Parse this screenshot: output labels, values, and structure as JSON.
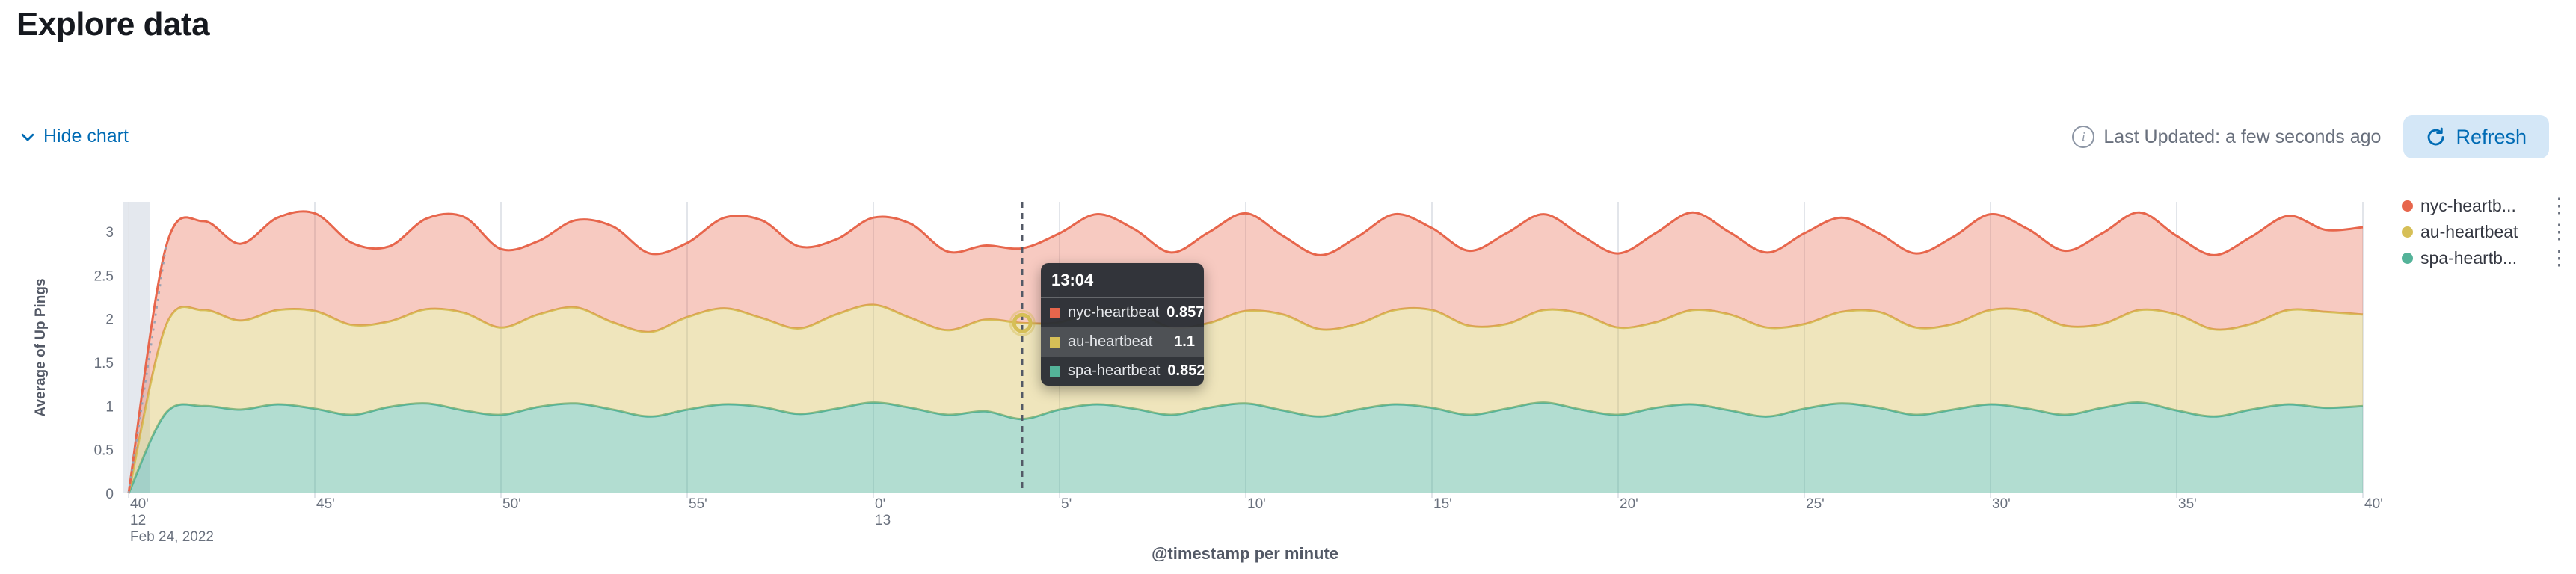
{
  "page": {
    "title": "Explore data"
  },
  "controls": {
    "hide_chart_label": "Hide chart",
    "last_updated": "Last Updated: a few seconds ago",
    "refresh_label": "Refresh"
  },
  "legend": {
    "items": [
      {
        "label": "nyc-heartb...",
        "color": "#E7664C"
      },
      {
        "label": "au-heartbeat",
        "color": "#D6BF57"
      },
      {
        "label": "spa-heartb...",
        "color": "#54B399"
      }
    ]
  },
  "tooltip": {
    "header": "13:04",
    "rows": [
      {
        "label": "nyc-heartbeat",
        "value": "0.857",
        "color": "#E7664C",
        "highlight": false
      },
      {
        "label": "au-heartbeat",
        "value": "1.1",
        "color": "#D6BF57",
        "highlight": true
      },
      {
        "label": "spa-heartbeat",
        "value": "0.852",
        "color": "#54B399",
        "highlight": false
      }
    ]
  },
  "chart_data": {
    "type": "area",
    "stacked": true,
    "xlabel": "@timestamp per minute",
    "ylabel": "Average of Up Pings",
    "ylim": [
      0,
      3.3
    ],
    "y_ticks": [
      0,
      0.5,
      1,
      1.5,
      2,
      2.5,
      3
    ],
    "x_tick_minutes": [
      0,
      5,
      10,
      15,
      20,
      25,
      30,
      35,
      40,
      45,
      50,
      55,
      60
    ],
    "x_tick_labels": [
      "40'",
      "45'",
      "50'",
      "55'",
      "0'",
      "5'",
      "10'",
      "15'",
      "20'",
      "25'",
      "30'",
      "35'",
      "40'"
    ],
    "x_hour_labels": [
      {
        "tick_index": 0,
        "label": "12"
      },
      {
        "tick_index": 4,
        "label": "13"
      }
    ],
    "date_label": "Feb 24, 2022",
    "crosshair_minute": 24,
    "highlight_series_index": 1,
    "grid": true,
    "legend_position": "right",
    "series": [
      {
        "name": "spa-heartbeat",
        "color": "#54B399",
        "fill_opacity": 0.45,
        "values": [
          0,
          0.92,
          1.0,
          0.96,
          1.02,
          0.97,
          0.9,
          0.99,
          1.03,
          0.95,
          0.9,
          0.99,
          1.03,
          0.96,
          0.88,
          0.96,
          1.02,
          0.99,
          0.91,
          0.97,
          1.04,
          0.98,
          0.9,
          0.94,
          0.852,
          0.96,
          1.02,
          0.97,
          0.9,
          0.98,
          1.03,
          0.95,
          0.88,
          0.96,
          1.02,
          0.98,
          0.9,
          0.97,
          1.04,
          0.96,
          0.9,
          0.98,
          1.02,
          0.95,
          0.88,
          0.97,
          1.03,
          0.98,
          0.9,
          0.96,
          1.02,
          0.97,
          0.9,
          0.98,
          1.04,
          0.95,
          0.88,
          0.96,
          1.02,
          0.98,
          1.0
        ]
      },
      {
        "name": "au-heartbeat",
        "color": "#D6BF57",
        "fill_opacity": 0.4,
        "values": [
          0,
          1.0,
          1.1,
          1.02,
          1.08,
          1.12,
          1.03,
          0.98,
          1.08,
          1.12,
          1.0,
          1.06,
          1.1,
          1.0,
          0.97,
          1.06,
          1.1,
          1.02,
          0.98,
          1.08,
          1.12,
          1.03,
          0.97,
          1.05,
          1.1,
          1.0,
          1.08,
          1.12,
          1.0,
          0.97,
          1.06,
          1.1,
          1.0,
          0.98,
          1.08,
          1.12,
          1.02,
          0.97,
          1.06,
          1.1,
          1.0,
          0.98,
          1.08,
          1.1,
          1.02,
          0.97,
          1.05,
          1.1,
          1.0,
          0.98,
          1.08,
          1.12,
          1.02,
          0.96,
          1.06,
          1.1,
          1.0,
          0.98,
          1.08,
          1.1,
          1.05
        ]
      },
      {
        "name": "nyc-heartbeat",
        "color": "#E7664C",
        "fill_opacity": 0.35,
        "values": [
          0,
          0.9,
          1.02,
          0.88,
          1.06,
          1.12,
          0.94,
          0.86,
          1.04,
          1.1,
          0.9,
          0.84,
          1.0,
          1.1,
          0.9,
          0.85,
          1.04,
          1.12,
          0.94,
          0.86,
          1.0,
          1.08,
          0.9,
          0.85,
          0.857,
          1.02,
          1.1,
          0.94,
          0.86,
          1.04,
          1.12,
          0.9,
          0.85,
          1.0,
          1.1,
          0.94,
          0.86,
          1.04,
          1.1,
          0.9,
          0.85,
          1.02,
          1.12,
          0.94,
          0.86,
          1.04,
          1.08,
          0.9,
          0.85,
          1.0,
          1.1,
          0.94,
          0.86,
          1.04,
          1.12,
          0.9,
          0.85,
          1.0,
          1.08,
          0.94,
          1.0
        ]
      }
    ]
  }
}
